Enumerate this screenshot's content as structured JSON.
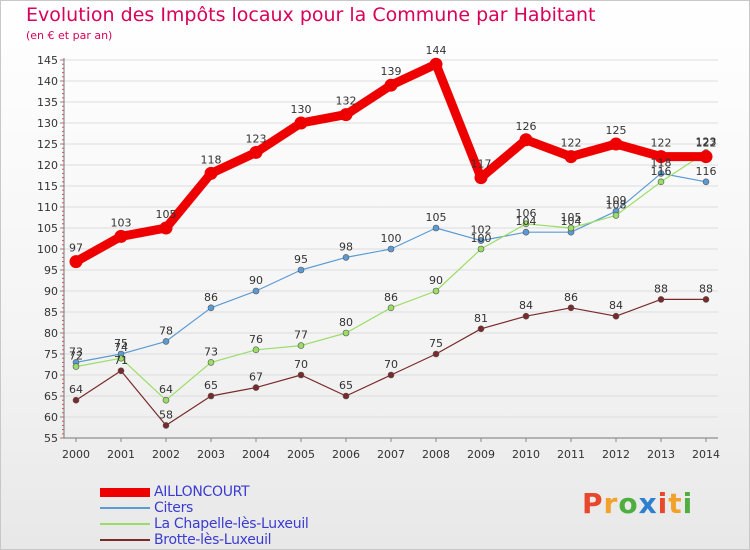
{
  "title": "Evolution des Impôts locaux pour la Commune par Habitant",
  "subtitle": "(en € et par an)",
  "logo": {
    "text": "Proxiti",
    "colors": [
      "#e8472b",
      "#f2a12b",
      "#4fae3f",
      "#2f7fd0",
      "#e8472b",
      "#f2a12b",
      "#4fae3f"
    ]
  },
  "chart_data": {
    "type": "line",
    "title": "Evolution des Impôts locaux pour la Commune par Habitant",
    "subtitle": "(en € et par an)",
    "xlabel": "",
    "ylabel": "",
    "categories": [
      "2000",
      "2001",
      "2002",
      "2003",
      "2004",
      "2005",
      "2006",
      "2007",
      "2008",
      "2009",
      "2010",
      "2011",
      "2012",
      "2013",
      "2014"
    ],
    "ylim": [
      55,
      145
    ],
    "yticks": [
      55,
      60,
      65,
      70,
      75,
      80,
      85,
      90,
      95,
      100,
      105,
      110,
      115,
      120,
      125,
      130,
      135,
      140,
      145
    ],
    "grid": "horizontal",
    "legend_position": "bottom-left",
    "series": [
      {
        "name": "AILLONCOURT",
        "color": "#ee0000",
        "highlight": true,
        "values": [
          97,
          103,
          105,
          118,
          123,
          130,
          132,
          139,
          144,
          117,
          126,
          122,
          125,
          122,
          122
        ]
      },
      {
        "name": "Citers",
        "color": "#5b9bd5",
        "values": [
          73,
          75,
          78,
          86,
          90,
          95,
          98,
          100,
          105,
          102,
          104,
          104,
          109,
          118,
          116
        ]
      },
      {
        "name": "La Chapelle-lès-Luxeuil",
        "color": "#99dd66",
        "values": [
          72,
          74,
          64,
          73,
          76,
          77,
          80,
          86,
          90,
          100,
          106,
          105,
          108,
          116,
          123
        ]
      },
      {
        "name": "Brotte-lès-Luxeuil",
        "color": "#7a2a2a",
        "values": [
          64,
          71,
          58,
          65,
          67,
          70,
          65,
          70,
          75,
          81,
          84,
          86,
          84,
          88,
          88
        ]
      }
    ]
  }
}
